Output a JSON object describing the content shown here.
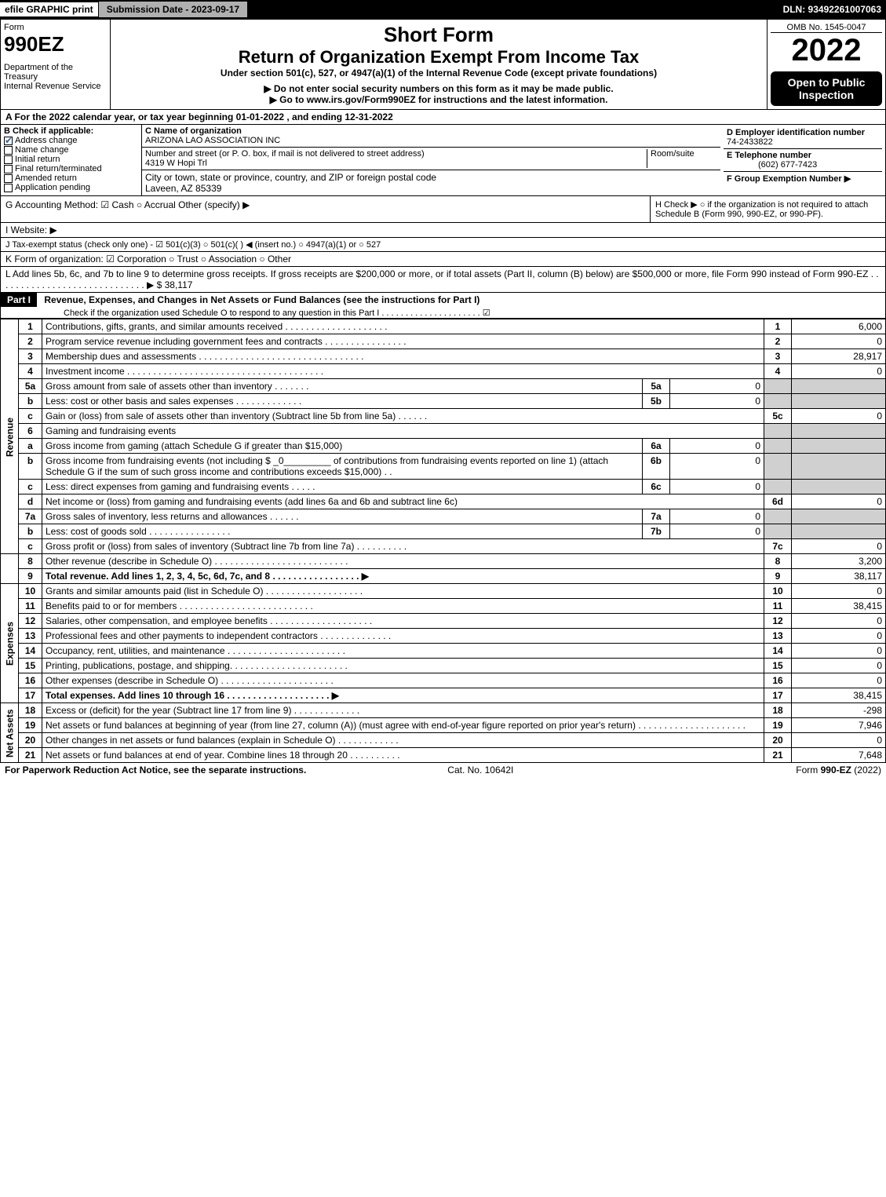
{
  "topbar": {
    "efile": "efile GRAPHIC print",
    "submission": "Submission Date - 2023-09-17",
    "dln": "DLN: 93492261007063"
  },
  "header": {
    "form_word": "Form",
    "form_number": "990EZ",
    "dept1": "Department of the Treasury",
    "dept2": "Internal Revenue Service",
    "short_form": "Short Form",
    "title": "Return of Organization Exempt From Income Tax",
    "under": "Under section 501(c), 527, or 4947(a)(1) of the Internal Revenue Code (except private foundations)",
    "warn": "▶ Do not enter social security numbers on this form as it may be made public.",
    "goto": "▶ Go to www.irs.gov/Form990EZ for instructions and the latest information.",
    "omb": "OMB No. 1545-0047",
    "year": "2022",
    "open": "Open to Public Inspection"
  },
  "A": "A  For the 2022 calendar year, or tax year beginning 01-01-2022 , and ending 12-31-2022",
  "B": {
    "head": "B  Check if applicable:",
    "items": [
      "Address change",
      "Name change",
      "Initial return",
      "Final return/terminated",
      "Amended return",
      "Application pending"
    ],
    "checked": [
      true,
      false,
      false,
      false,
      false,
      false
    ]
  },
  "C": {
    "label": "C Name of organization",
    "name": "ARIZONA LAO ASSOCIATION INC",
    "street_label": "Number and street (or P. O. box, if mail is not delivered to street address)",
    "room": "Room/suite",
    "street": "4319 W Hopi Trl",
    "city_label": "City or town, state or province, country, and ZIP or foreign postal code",
    "city": "Laveen, AZ  85339"
  },
  "D": {
    "label": "D Employer identification number",
    "val": "74-2433822"
  },
  "E": {
    "label": "E Telephone number",
    "val": "(602) 677-7423"
  },
  "F": {
    "label": "F Group Exemption Number   ▶"
  },
  "G": "G Accounting Method:   ☑ Cash   ○ Accrual   Other (specify) ▶",
  "H": "H   Check ▶  ○  if the organization is not required to attach Schedule B (Form 990, 990-EZ, or 990-PF).",
  "I": "I Website: ▶",
  "J": "J Tax-exempt status (check only one) -  ☑ 501(c)(3)  ○ 501(c)(  ) ◀ (insert no.)  ○ 4947(a)(1) or  ○ 527",
  "K": "K Form of organization:   ☑ Corporation   ○ Trust   ○ Association   ○ Other",
  "L": "L Add lines 5b, 6c, and 7b to line 9 to determine gross receipts. If gross receipts are $200,000 or more, or if total assets (Part II, column (B) below) are $500,000 or more, file Form 990 instead of Form 990-EZ  .  .  .  .  .  .  .  .  .  .  .  .  .  .  .  .  .  .  .  .  .  .  .  .  .  .  .  .  .  ▶ $ 38,117",
  "part1": {
    "label": "Part I",
    "title": "Revenue, Expenses, and Changes in Net Assets or Fund Balances (see the instructions for Part I)",
    "check": "Check if the organization used Schedule O to respond to any question in this Part I  .  .  .  .  .  .  .  .  .  .  .  .  .  .  .  .  .  .  .  .  .  ☑"
  },
  "vlabels": {
    "rev": "Revenue",
    "exp": "Expenses",
    "net": "Net Assets"
  },
  "lines": {
    "1": {
      "t": "Contributions, gifts, grants, and similar amounts received  .  .  .  .  .  .  .  .  .  .  .  .  .  .  .  .  .  .  .  .",
      "a": "6,000"
    },
    "2": {
      "t": "Program service revenue including government fees and contracts  .  .  .  .  .  .  .  .  .  .  .  .  .  .  .  .",
      "a": "0"
    },
    "3": {
      "t": "Membership dues and assessments  .  .  .  .  .  .  .  .  .  .  .  .  .  .  .  .  .  .  .  .  .  .  .  .  .  .  .  .  .  .  .  .",
      "a": "28,917"
    },
    "4": {
      "t": "Investment income  .  .  .  .  .  .  .  .  .  .  .  .  .  .  .  .  .  .  .  .  .  .  .  .  .  .  .  .  .  .  .  .  .  .  .  .  .  .",
      "a": "0"
    },
    "5a": {
      "t": "Gross amount from sale of assets other than inventory  .  .  .  .  .  .  .",
      "s": "5a",
      "sa": "0"
    },
    "5b": {
      "t": "Less: cost or other basis and sales expenses  .  .  .  .  .  .  .  .  .  .  .  .  .",
      "s": "5b",
      "sa": "0"
    },
    "5c": {
      "t": "Gain or (loss) from sale of assets other than inventory (Subtract line 5b from line 5a)  .  .  .  .  .  .",
      "r": "5c",
      "a": "0"
    },
    "6": {
      "t": "Gaming and fundraising events"
    },
    "6a": {
      "t": "Gross income from gaming (attach Schedule G if greater than $15,000)",
      "s": "6a",
      "sa": "0"
    },
    "6b": {
      "t": "Gross income from fundraising events (not including $ _0_________ of contributions from fundraising events reported on line 1) (attach Schedule G if the sum of such gross income and contributions exceeds $15,000)   .  .",
      "s": "6b",
      "sa": "0"
    },
    "6c": {
      "t": "Less: direct expenses from gaming and fundraising events   .  .  .  .  .",
      "s": "6c",
      "sa": "0"
    },
    "6d": {
      "t": "Net income or (loss) from gaming and fundraising events (add lines 6a and 6b and subtract line 6c)",
      "r": "6d",
      "a": "0"
    },
    "7a": {
      "t": "Gross sales of inventory, less returns and allowances  .  .  .  .  .  .",
      "s": "7a",
      "sa": "0"
    },
    "7b": {
      "t": "Less: cost of goods sold      .  .  .  .  .  .  .  .  .  .  .  .  .  .  .  .",
      "s": "7b",
      "sa": "0"
    },
    "7c": {
      "t": "Gross profit or (loss) from sales of inventory (Subtract line 7b from line 7a)  .  .  .  .  .  .  .  .  .  .",
      "r": "7c",
      "a": "0"
    },
    "8": {
      "t": "Other revenue (describe in Schedule O)  .  .  .  .  .  .  .  .  .  .  .  .  .  .  .  .  .  .  .  .  .  .  .  .  .  .",
      "a": "3,200"
    },
    "9": {
      "t": "Total revenue. Add lines 1, 2, 3, 4, 5c, 6d, 7c, and 8   .  .  .  .  .  .  .  .  .  .  .  .  .  .  .  .  .  ▶",
      "a": "38,117",
      "bold": true
    },
    "10": {
      "t": "Grants and similar amounts paid (list in Schedule O)  .  .  .  .  .  .  .  .  .  .  .  .  .  .  .  .  .  .  .",
      "a": "0"
    },
    "11": {
      "t": "Benefits paid to or for members      .  .  .  .  .  .  .  .  .  .  .  .  .  .  .  .  .  .  .  .  .  .  .  .  .  .",
      "a": "38,415"
    },
    "12": {
      "t": "Salaries, other compensation, and employee benefits  .  .  .  .  .  .  .  .  .  .  .  .  .  .  .  .  .  .  .  .",
      "a": "0"
    },
    "13": {
      "t": "Professional fees and other payments to independent contractors  .  .  .  .  .  .  .  .  .  .  .  .  .  .",
      "a": "0"
    },
    "14": {
      "t": "Occupancy, rent, utilities, and maintenance  .  .  .  .  .  .  .  .  .  .  .  .  .  .  .  .  .  .  .  .  .  .  .",
      "a": "0"
    },
    "15": {
      "t": "Printing, publications, postage, and shipping.  .  .  .  .  .  .  .  .  .  .  .  .  .  .  .  .  .  .  .  .  .  .",
      "a": "0"
    },
    "16": {
      "t": "Other expenses (describe in Schedule O)     .  .  .  .  .  .  .  .  .  .  .  .  .  .  .  .  .  .  .  .  .  .",
      "a": "0"
    },
    "17": {
      "t": "Total expenses. Add lines 10 through 16     .  .  .  .  .  .  .  .  .  .  .  .  .  .  .  .  .  .  .  .  ▶",
      "a": "38,415",
      "bold": true
    },
    "18": {
      "t": "Excess or (deficit) for the year (Subtract line 17 from line 9)      .  .  .  .  .  .  .  .  .  .  .  .  .",
      "a": "-298"
    },
    "19": {
      "t": "Net assets or fund balances at beginning of year (from line 27, column (A)) (must agree with end-of-year figure reported on prior year's return)  .  .  .  .  .  .  .  .  .  .  .  .  .  .  .  .  .  .  .  .  .",
      "a": "7,946"
    },
    "20": {
      "t": "Other changes in net assets or fund balances (explain in Schedule O)  .  .  .  .  .  .  .  .  .  .  .  .",
      "a": "0"
    },
    "21": {
      "t": "Net assets or fund balances at end of year. Combine lines 18 through 20  .  .  .  .  .  .  .  .  .  .",
      "a": "7,648"
    }
  },
  "footer": {
    "left": "For Paperwork Reduction Act Notice, see the separate instructions.",
    "mid": "Cat. No. 10642I",
    "right": "Form 990-EZ (2022)"
  }
}
